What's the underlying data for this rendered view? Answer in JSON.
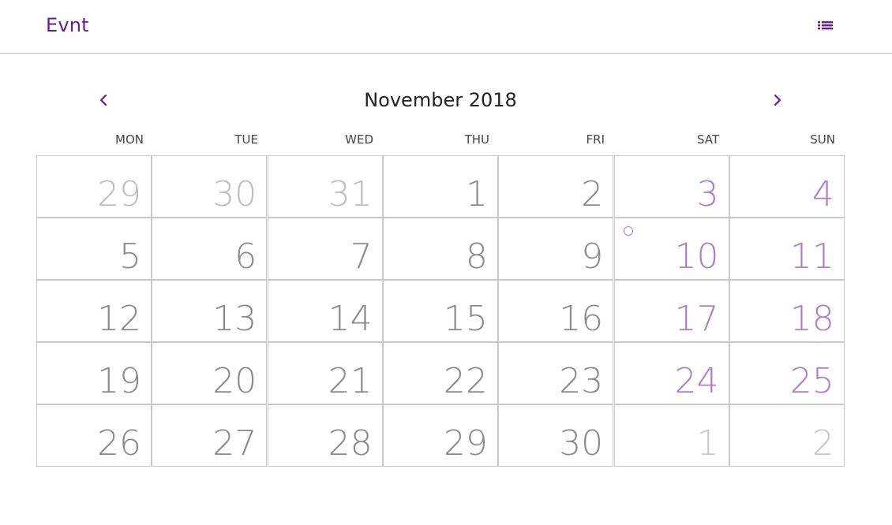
{
  "app": {
    "brand": "Evnt"
  },
  "icons": {
    "menu": "list-icon",
    "prev": "chevron-left-icon",
    "next": "chevron-right-icon",
    "event": "circle-icon"
  },
  "colors": {
    "accent": "#6a1b9a",
    "weekend": "#b57ac6",
    "day": "#8a8a8a",
    "other_month": "#bdbdbd",
    "border": "#c8c8c8"
  },
  "calendar": {
    "title": "November 2018",
    "weekdays": [
      "MON",
      "TUE",
      "WED",
      "THU",
      "FRI",
      "SAT",
      "SUN"
    ],
    "weeks": [
      [
        "29",
        "30",
        "31",
        "1",
        "2",
        "3",
        "4"
      ],
      [
        "5",
        "6",
        "7",
        "8",
        "9",
        "10",
        "11"
      ],
      [
        "12",
        "13",
        "14",
        "15",
        "16",
        "17",
        "18"
      ],
      [
        "19",
        "20",
        "21",
        "22",
        "23",
        "24",
        "25"
      ],
      [
        "26",
        "27",
        "28",
        "29",
        "30",
        "1",
        "2"
      ]
    ],
    "other_month_cells": [
      [
        0,
        0
      ],
      [
        0,
        1
      ],
      [
        0,
        2
      ],
      [
        4,
        5
      ],
      [
        4,
        6
      ]
    ],
    "event_cells": [
      [
        1,
        5
      ]
    ]
  }
}
